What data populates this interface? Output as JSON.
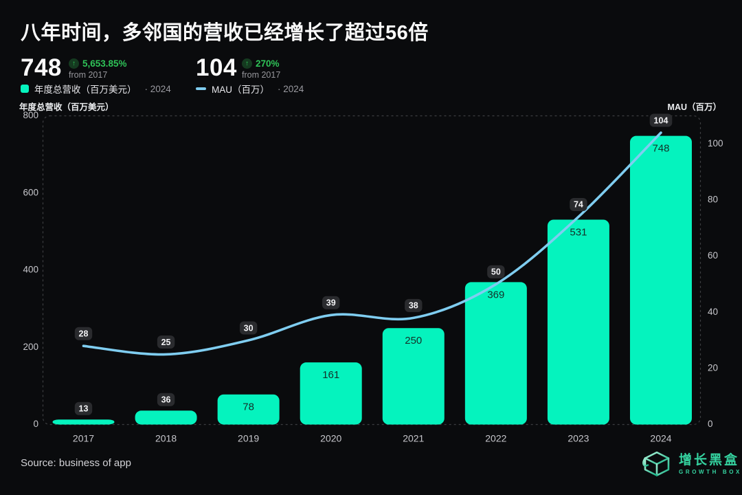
{
  "title": "八年时间，多邻国的营收已经增长了超过56倍",
  "kpis": [
    {
      "value": "748",
      "arrow": "↑",
      "change": "5,653.85%",
      "since": "from 2017"
    },
    {
      "value": "104",
      "arrow": "↑",
      "change": "270%",
      "since": "from 2017"
    }
  ],
  "legend": [
    {
      "label": "年度总营收（百万美元）",
      "suffix": "· 2024"
    },
    {
      "label": "MAU（百万）",
      "suffix": "· 2024"
    }
  ],
  "axes": {
    "left_title": "年度总营收（百万美元）",
    "right_title": "MAU（百万）",
    "left_ticks": [
      0,
      200,
      400,
      600,
      800
    ],
    "right_ticks": [
      0,
      20,
      40,
      60,
      80,
      100
    ]
  },
  "source": "Source: business of app",
  "logo": {
    "cn": "增长黑盒",
    "en": "GROWTH BOX"
  },
  "chart_data": {
    "type": "bar+line",
    "title": "八年时间，多邻国的营收已经增长了超过56倍",
    "categories": [
      "2017",
      "2018",
      "2019",
      "2020",
      "2021",
      "2022",
      "2023",
      "2024"
    ],
    "series": [
      {
        "name": "年度总营收（百万美元）",
        "type": "bar",
        "axis": "left",
        "values": [
          13,
          36,
          78,
          161,
          250,
          369,
          531,
          748
        ]
      },
      {
        "name": "MAU（百万）",
        "type": "line",
        "axis": "right",
        "values": [
          28,
          25,
          30,
          39,
          38,
          50,
          74,
          104
        ]
      }
    ],
    "left_axis": {
      "min": 0,
      "max": 800,
      "label": "年度总营收（百万美元）"
    },
    "right_axis": {
      "min": 0,
      "max": 110,
      "label": "MAU（百万）"
    },
    "grid": "dashed-border-only",
    "legend_position": "top-left"
  },
  "colors": {
    "background": "#0a0b0d",
    "bar": "#05f3be",
    "line": "#7fcdf0",
    "badge_bg": "#2a2b2e",
    "badge_text": "#f2f2f4",
    "bar_label": "#143028",
    "tick": "#c7c7cc",
    "year": "#c6c6cb",
    "grid": "#3d3e41",
    "green": "#2fc358",
    "green_dark": "#153a20",
    "white": "#fafafa",
    "teal": "#35d3a0"
  }
}
